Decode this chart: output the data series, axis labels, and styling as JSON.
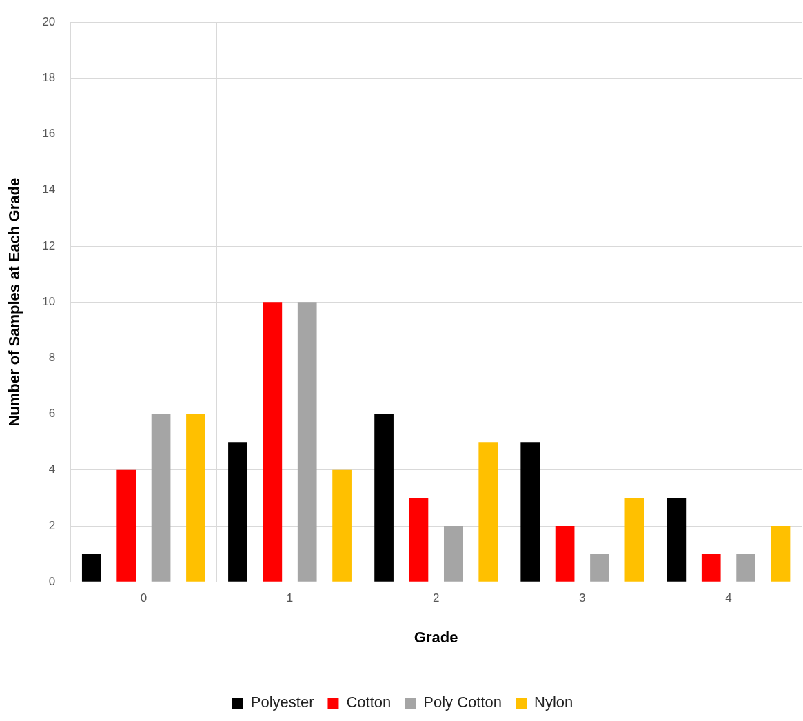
{
  "chart_data": {
    "type": "bar",
    "xlabel": "Grade",
    "ylabel": "Number of Samples at Each Grade",
    "categories": [
      "0",
      "1",
      "2",
      "3",
      "4"
    ],
    "series": [
      {
        "name": "Polyester",
        "color": "#000000",
        "values": [
          1,
          5,
          6,
          5,
          3
        ]
      },
      {
        "name": "Cotton",
        "color": "#ff0000",
        "values": [
          4,
          10,
          3,
          2,
          1
        ]
      },
      {
        "name": "Poly Cotton",
        "color": "#a5a5a5",
        "values": [
          6,
          10,
          2,
          1,
          1
        ]
      },
      {
        "name": "Nylon",
        "color": "#ffc000",
        "values": [
          6,
          4,
          5,
          3,
          2
        ]
      }
    ],
    "ylim": [
      0,
      20
    ],
    "yticks": [
      0,
      2,
      4,
      6,
      8,
      10,
      12,
      14,
      16,
      18,
      20
    ],
    "grid": true,
    "legend": "bottom"
  }
}
